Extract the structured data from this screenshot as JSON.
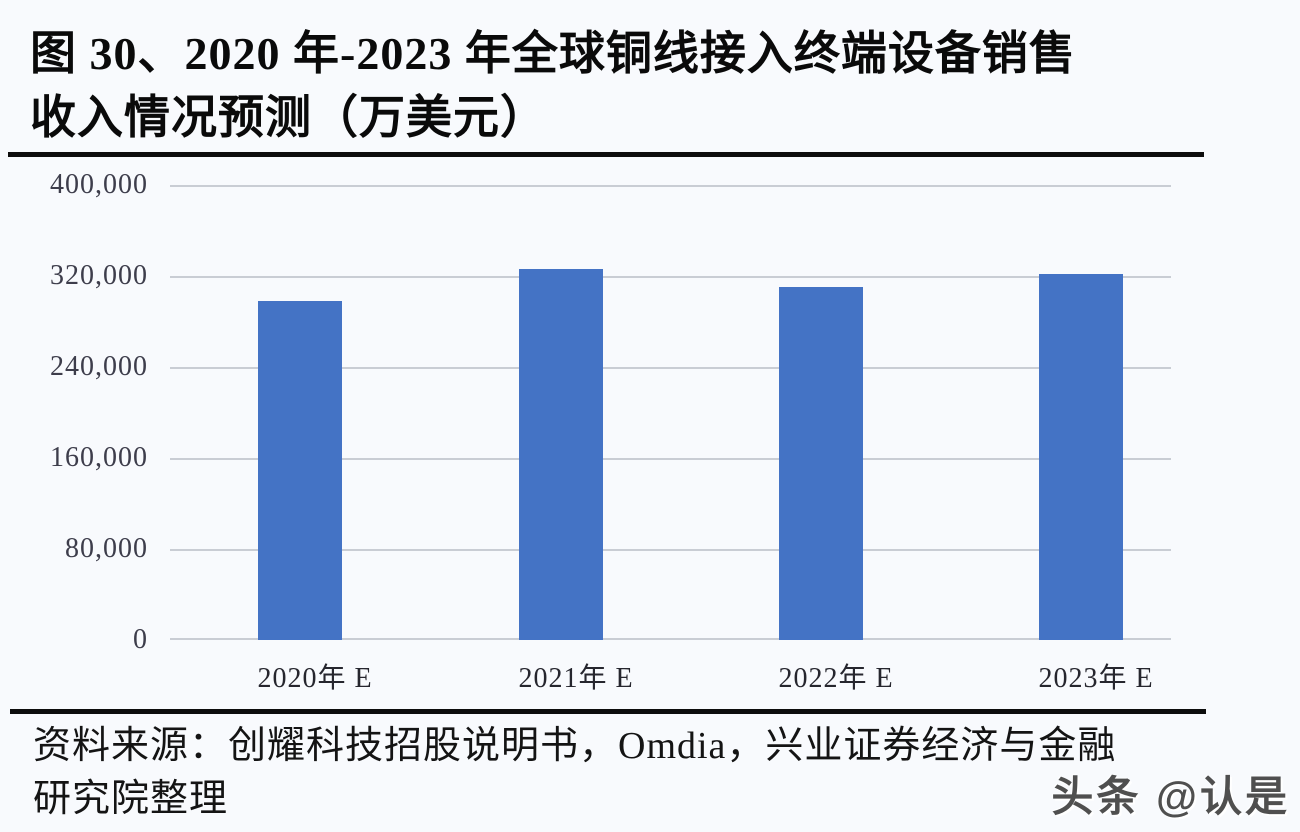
{
  "figure": {
    "title_line1": "图 30、2020 年-2023 年全球铜线接入终端设备销售",
    "title_line2": "收入情况预测（万美元）"
  },
  "chart_data": {
    "type": "bar",
    "title": "2020年-2023年全球铜线接入终端设备销售收入情况预测（万美元）",
    "categories": [
      "2020年 E",
      "2021年 E",
      "2022年 E",
      "2023年 E"
    ],
    "values": [
      298000,
      326000,
      310000,
      322000
    ],
    "unit": "万美元",
    "xlabel": "",
    "ylabel": "",
    "ylim": [
      0,
      400000
    ],
    "yticks_values": [
      0,
      80000,
      160000,
      240000,
      320000,
      400000
    ],
    "yticks_labels": [
      "0",
      "80,000",
      "160,000",
      "240,000",
      "320,000",
      "400,000"
    ],
    "grid": true,
    "legend": false,
    "bar_color": "#4473C5"
  },
  "source": {
    "line1": "资料来源：创耀科技招股说明书，Omdia，兴业证券经济与金融",
    "line2": "研究院整理"
  },
  "watermark": {
    "text": "头条 @认是"
  },
  "colors": {
    "background": "#F8FAFD",
    "bar": "#4473C5",
    "gridline": "#C9CDD4",
    "axis_text": "#3D3D4B",
    "title_text": "#0A0A0A"
  }
}
